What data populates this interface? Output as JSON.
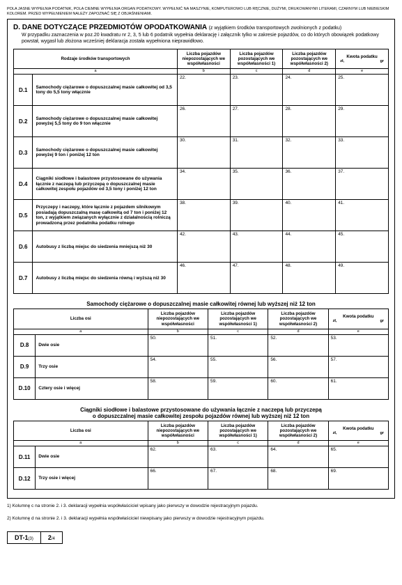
{
  "header_note": "POLA JASNE WYPEŁNIA PODATNIK, POLA CIEMNE WYPEŁNIA ORGAN PODATKOWY. WYPEŁNIĆ NA MASZYNIE, KOMPUTEROWO LUB RĘCZNIE, DUŻYMI, DRUKOWANYMI LITERAMI, CZARNYM LUB NIEBIESKIM KOLOREM. PRZED WYPEŁNIENIEM NALEŻY ZAPOZNAĆ SIĘ Z OBJAŚNIENIAMI.",
  "section": {
    "letter": "D.",
    "title": "DANE DOTYCZĄCE PRZEDMIOTÓW OPODATKOWANIA",
    "title_note": "(z wyjątkiem środków transportowych zwolnionych z podatku)",
    "subtext": "W przypadku zaznaczenia w poz.20 kwadratu nr 2, 3, 5 lub 6 podatnik wypełnia deklarację i załącznik tylko w zakresie pojazdów, co do których obowiązek podatkowy powstał, wygasł lub złożona wcześniej deklaracja została wypełniona nieprawidłowo."
  },
  "table1": {
    "head": {
      "rodzaje": "Rodzaje środków transportowych",
      "col_b": "Liczba pojazdów niepozostających we współwłasności",
      "col_c": "Liczba pojazdów pozostających we współwłasności 1)",
      "col_d": "Liczba pojazdów pozostających we współwłasności 2)",
      "col_e": "Kwota podatku",
      "zl": "zł,",
      "gr": "gr"
    },
    "letters": {
      "a": "a",
      "b": "b",
      "c": "c",
      "d": "d",
      "e": "e"
    },
    "rows": [
      {
        "id": "D.1",
        "desc": "Samochody ciężarowe o dopuszczalnej masie całkowitej od 3,5 tony do 5,5 tony włącznie",
        "n": [
          "22.",
          "23.",
          "24.",
          "25."
        ]
      },
      {
        "id": "D.2",
        "desc": "Samochody ciężarowe o dopuszczalnej masie całkowitej powyżej 5,5 tony do 9 ton włącznie",
        "n": [
          "26.",
          "27.",
          "28.",
          "29."
        ]
      },
      {
        "id": "D.3",
        "desc": "Samochody ciężarowe o dopuszczalnej masie całkowitej powyżej 9 ton i poniżej 12 ton",
        "n": [
          "30.",
          "31.",
          "32.",
          "33."
        ]
      },
      {
        "id": "D.4",
        "desc": "Ciągniki siodłowe i balastowe przystosowane do używania łącznie z naczepą lub przyczepą o dopuszczalnej masie całkowitej zespołu pojazdów od 3,5 tony i poniżej 12 ton",
        "n": [
          "34.",
          "35.",
          "36.",
          "37."
        ]
      },
      {
        "id": "D.5",
        "desc": "Przyczepy i naczepy, które łącznie z pojazdem silnikowym posiadają dopuszczalną masę całkowitą od 7 ton i poniżej 12 ton, z wyjątkiem związanych wyłącznie z działalnością rolniczą prowadzoną przez podatnika podatku rolnego",
        "n": [
          "38.",
          "39.",
          "40.",
          "41."
        ]
      },
      {
        "id": "D.6",
        "desc": "Autobusy z liczbą miejsc do siedzenia mniejszą niż 30",
        "n": [
          "42.",
          "43.",
          "44.",
          "45."
        ]
      },
      {
        "id": "D.7",
        "desc": "Autobusy z liczbą miejsc do siedzenia równą i wyższą niż 30",
        "n": [
          "46.",
          "47.",
          "48.",
          "49."
        ]
      }
    ]
  },
  "subsection1": {
    "title": "Samochody ciężarowe o dopuszczalnej masie całkowitej równej lub wyższej niż 12 ton",
    "head_osi": "Liczba osi",
    "rows": [
      {
        "id": "D.8",
        "desc": "Dwie osie",
        "n": [
          "50.",
          "51.",
          "52.",
          "53."
        ]
      },
      {
        "id": "D.9",
        "desc": "Trzy osie",
        "n": [
          "54.",
          "55.",
          "56.",
          "57."
        ]
      },
      {
        "id": "D.10",
        "desc": "Cztery osie i więcej",
        "n": [
          "58.",
          "59.",
          "60.",
          "61."
        ]
      }
    ]
  },
  "subsection2": {
    "title_l1": "Ciągniki siodłowe i balastowe przystosowane do używania łącznie z naczepą lub przyczepą",
    "title_l2": "o dopuszczalnej masie całkowitej zespołu pojazdów równej lub wyższej niż 12 ton",
    "rows": [
      {
        "id": "D.11",
        "desc": "Dwie osie",
        "n": [
          "62.",
          "63.",
          "64.",
          "65."
        ]
      },
      {
        "id": "D.12",
        "desc": "Trzy osie i więcej",
        "n": [
          "66.",
          "67.",
          "68.",
          "69."
        ]
      }
    ]
  },
  "footnotes": {
    "f1": "1) Kolumnę c na stronie 2. i 3. deklaracji wypełnia współwłaściciel wpisany jako pierwszy w dowodzie rejestracyjnym pojazdu.",
    "f2": "2) Kolumnę d na stronie 2. i 3. deklaracji wypełnia współwłaściciel niewpisany jako pierwszy w dowodzie rejestracyjnym pojazdu."
  },
  "footer": {
    "form": "DT-1",
    "form_sub": "(3)",
    "page": "2",
    "page_of": "/4"
  }
}
